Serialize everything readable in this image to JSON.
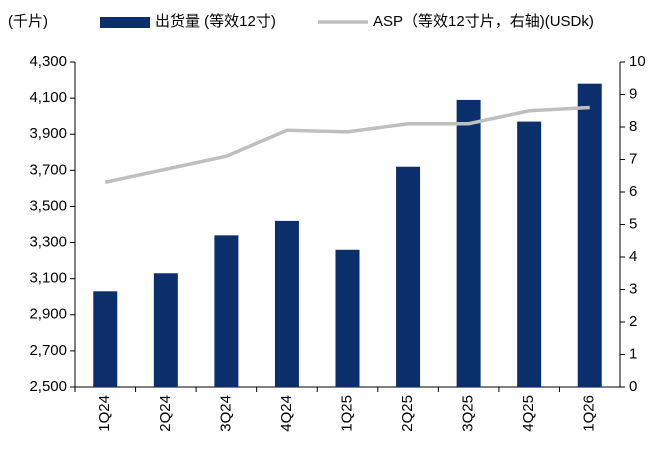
{
  "chart_data": {
    "type": "bar_line",
    "unit_label": "(千片)",
    "categories": [
      "1Q24",
      "2Q24",
      "3Q24",
      "4Q24",
      "1Q25",
      "2Q25",
      "3Q25",
      "4Q25",
      "1Q26"
    ],
    "series": [
      {
        "name": "出货量 (等效12寸)",
        "type": "bar",
        "color": "#0b2f6b",
        "axis": "y",
        "values": [
          3030,
          3130,
          3340,
          3420,
          3260,
          3720,
          4090,
          3970,
          4180
        ]
      },
      {
        "name": "ASP（等效12寸片，右轴)(USDk)",
        "type": "line",
        "color": "#bfbfbf",
        "axis": "y2",
        "values": [
          6.3,
          6.7,
          7.1,
          7.9,
          7.85,
          8.1,
          8.1,
          8.5,
          8.6
        ]
      }
    ],
    "ylim": [
      2500,
      4300
    ],
    "yticks": [
      {
        "value": 2500,
        "label": "2,500"
      },
      {
        "value": 2700,
        "label": "2,700"
      },
      {
        "value": 2900,
        "label": "2,900"
      },
      {
        "value": 3100,
        "label": "3,100"
      },
      {
        "value": 3300,
        "label": "3,300"
      },
      {
        "value": 3500,
        "label": "3,500"
      },
      {
        "value": 3700,
        "label": "3,700"
      },
      {
        "value": 3900,
        "label": "3,900"
      },
      {
        "value": 4100,
        "label": "4,100"
      },
      {
        "value": 4300,
        "label": "4,300"
      }
    ],
    "y2lim": [
      0,
      10
    ],
    "y2ticks": [
      0,
      1,
      2,
      3,
      4,
      5,
      6,
      7,
      8,
      9,
      10
    ],
    "legend": "top"
  }
}
